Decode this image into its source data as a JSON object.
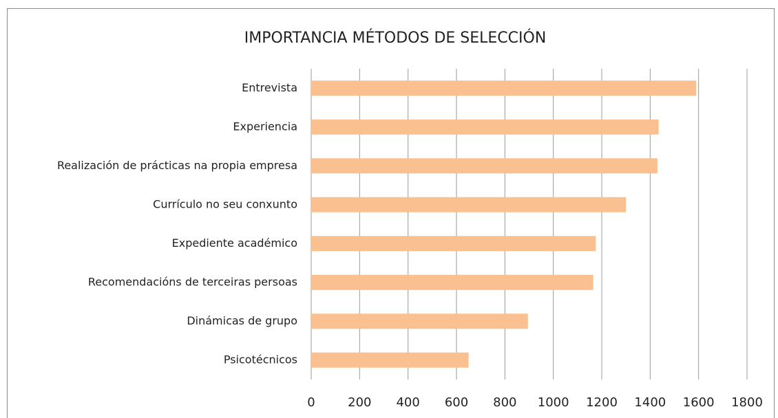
{
  "chart_data": {
    "type": "hbar",
    "title": "IMPORTANCIA MÉTODOS DE SELECCIÓN",
    "categories": [
      "Entrevista",
      "Experiencia",
      "Realización de prácticas na propia empresa",
      "Currículo no seu conxunto",
      "Expediente académico",
      "Recomendacións de terceiras persoas",
      "Dinámicas de grupo",
      "Psicotécnicos"
    ],
    "values": [
      1590,
      1435,
      1430,
      1300,
      1175,
      1165,
      895,
      650
    ],
    "color": "#fac090",
    "xlim": [
      0,
      1800
    ],
    "xticks": [
      0,
      200,
      400,
      600,
      800,
      1000,
      1200,
      1400,
      1600,
      1800
    ],
    "grid": true
  }
}
